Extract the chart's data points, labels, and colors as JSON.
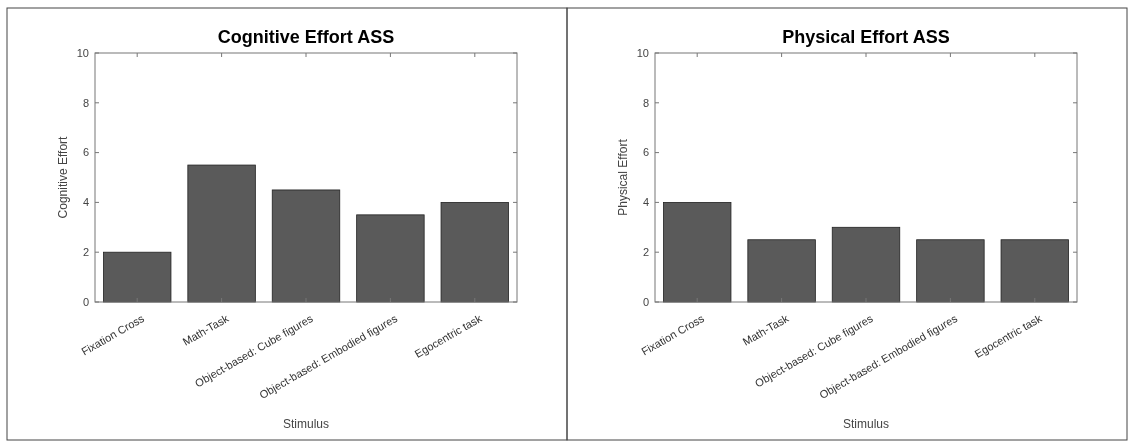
{
  "chart_data": [
    {
      "type": "bar",
      "title": "Cognitive Effort ASS",
      "xlabel": "Stimulus",
      "ylabel": "Cognitive Effort",
      "categories": [
        "Fixation Cross",
        "Math-Task",
        "Object-based: Cube figures",
        "Object-based: Embodied figures",
        "Egocentric task"
      ],
      "values": [
        2,
        5.5,
        4.5,
        3.5,
        4
      ],
      "color": "#5a5a5a",
      "ylim": [
        0,
        10
      ],
      "yticks": [
        0,
        2,
        4,
        6,
        8,
        10
      ],
      "grid": false
    },
    {
      "type": "bar",
      "title": "Physical Effort ASS",
      "xlabel": "Stimulus",
      "ylabel": "Physical Effort",
      "categories": [
        "Fixation Cross",
        "Math-Task",
        "Object-based: Cube figures",
        "Object-based: Embodied figures",
        "Egocentric task"
      ],
      "values": [
        4,
        2.5,
        3,
        2.5,
        2.5
      ],
      "color": "#5a5a5a",
      "ylim": [
        0,
        10
      ],
      "yticks": [
        0,
        2,
        4,
        6,
        8,
        10
      ],
      "grid": false
    }
  ]
}
